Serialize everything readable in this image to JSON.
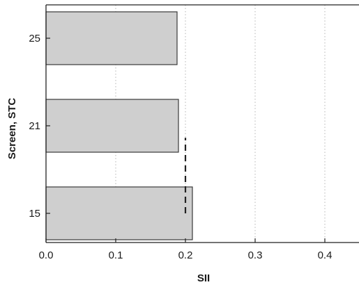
{
  "chart_data": {
    "type": "bar",
    "orientation": "horizontal",
    "categories": [
      "15",
      "21",
      "25"
    ],
    "values": [
      0.21,
      0.19,
      0.188
    ],
    "xlabel": "SII",
    "ylabel": "Screen, STC",
    "xlim": [
      0.0,
      0.45
    ],
    "xticks": [
      "0.0",
      "0.1",
      "0.2",
      "0.3",
      "0.4"
    ],
    "reference_line": {
      "x": 0.2,
      "style": "dashed",
      "y_from": 0.0,
      "y_to": 0.8
    },
    "grid": "vertical-dotted",
    "colors": {
      "bar_fill": "#cfcfcf",
      "bar_stroke": "#3a3a3a",
      "grid": "#b5b5b5",
      "reference": "#222222"
    }
  }
}
